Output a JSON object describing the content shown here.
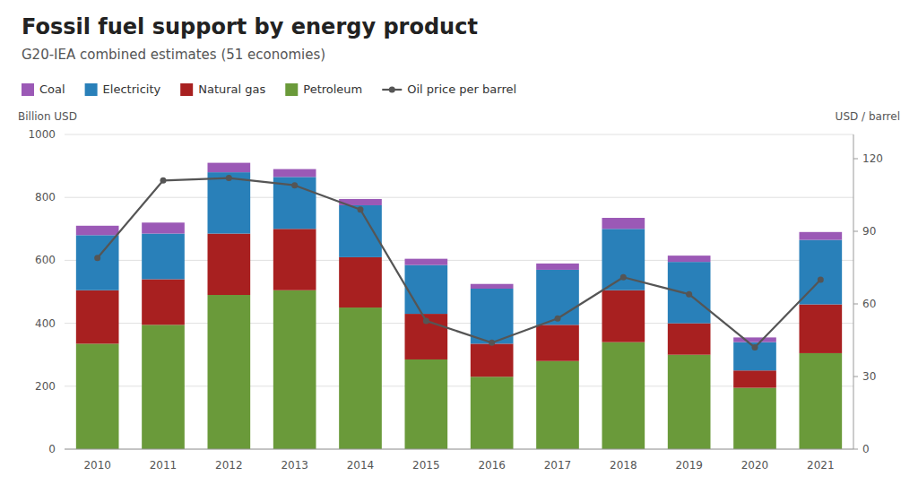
{
  "chart_data": {
    "type": "bar",
    "title": "Fossil fuel support by energy product",
    "subtitle": "G20-IEA combined estimates (51 economies)",
    "ylabel": "Billion USD",
    "y2label": "USD / barrel",
    "categories": [
      "2010",
      "2011",
      "2012",
      "2013",
      "2014",
      "2015",
      "2016",
      "2017",
      "2018",
      "2019",
      "2020",
      "2021"
    ],
    "stacked": true,
    "grid": true,
    "legend": "top",
    "ylim": [
      0,
      1000
    ],
    "yticks": [
      0,
      200,
      400,
      600,
      800,
      1000
    ],
    "y2lim": [
      0,
      130
    ],
    "y2ticks": [
      0,
      30,
      60,
      90,
      120
    ],
    "series": [
      {
        "name": "Petroleum",
        "type": "bar",
        "color": "#6a9a3a",
        "values": [
          335,
          395,
          490,
          505,
          450,
          285,
          230,
          280,
          340,
          300,
          195,
          305
        ]
      },
      {
        "name": "Natural gas",
        "type": "bar",
        "color": "#a82020",
        "values": [
          170,
          145,
          195,
          195,
          160,
          145,
          105,
          115,
          165,
          100,
          55,
          155
        ]
      },
      {
        "name": "Electricity",
        "type": "bar",
        "color": "#2980b9",
        "values": [
          175,
          145,
          195,
          165,
          165,
          155,
          175,
          175,
          195,
          195,
          90,
          205
        ]
      },
      {
        "name": "Coal",
        "type": "bar",
        "color": "#9b59b6",
        "values": [
          30,
          35,
          30,
          25,
          20,
          20,
          15,
          20,
          35,
          20,
          15,
          25
        ]
      },
      {
        "name": "Oil price per barrel",
        "type": "line",
        "axis": "y2",
        "color": "#555555",
        "marker": "circle",
        "line_style": "solid",
        "values": [
          79,
          111,
          112,
          109,
          99,
          53,
          44,
          54,
          71,
          64,
          42,
          70
        ]
      }
    ]
  }
}
